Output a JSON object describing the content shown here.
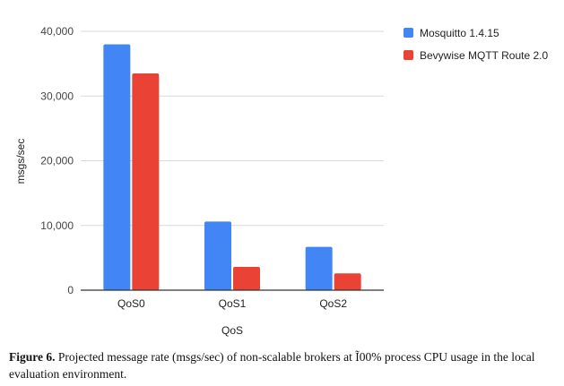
{
  "chart_data": {
    "type": "bar",
    "title": "",
    "xlabel": "QoS",
    "ylabel": "msgs/sec",
    "categories": [
      "QoS0",
      "QoS1",
      "QoS2"
    ],
    "series": [
      {
        "name": "Mosquitto 1.4.15",
        "color": "#4285f4",
        "values": [
          38000,
          10600,
          6700
        ]
      },
      {
        "name": "Bevywise MQTT Route 2.0",
        "color": "#ea4335",
        "values": [
          33500,
          3600,
          2600
        ]
      }
    ],
    "ylim": [
      0,
      40000
    ],
    "yticks": [
      0,
      10000,
      20000,
      30000,
      40000
    ],
    "ytick_labels": [
      "0",
      "10,000",
      "20,000",
      "30,000",
      "40,000"
    ],
    "grid": true,
    "legend_placement": "right"
  },
  "caption": {
    "label": "Figure 6.",
    "text": " Projected message rate (msgs/sec) of non-scalable brokers at Ĩ00% process CPU usage in the local evaluation environment."
  }
}
